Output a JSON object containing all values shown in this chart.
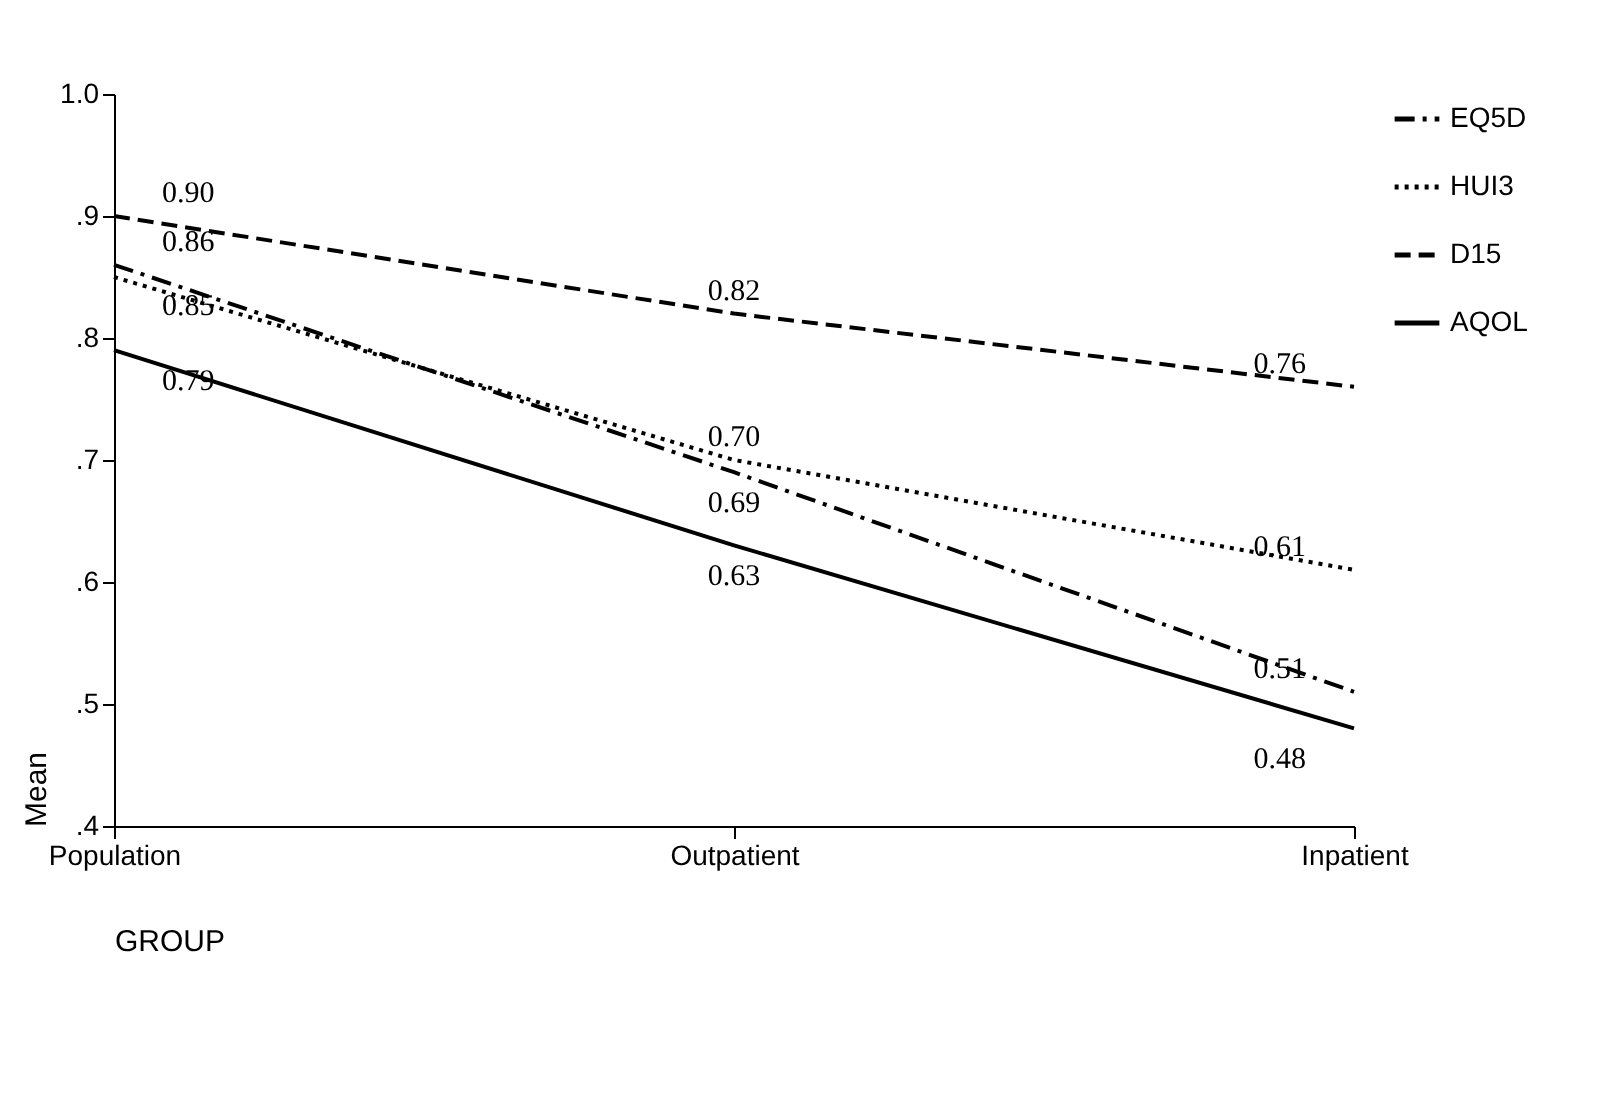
{
  "chart_data": {
    "type": "line",
    "categories": [
      "Population",
      "Outpatient",
      "Inpatient"
    ],
    "series": [
      {
        "name": "EQ5D",
        "color": "#000000",
        "line_style": "dashdot",
        "values": [
          0.86,
          0.69,
          0.51
        ],
        "value_labels": [
          "0.86",
          "0.69",
          "0.51"
        ]
      },
      {
        "name": "HUI3",
        "color": "#000000",
        "line_style": "dotted",
        "values": [
          0.85,
          0.7,
          0.61
        ],
        "value_labels": [
          "0.85",
          "0.70",
          "0.61"
        ]
      },
      {
        "name": "D15",
        "color": "#000000",
        "line_style": "dashed",
        "values": [
          0.9,
          0.82,
          0.76
        ],
        "value_labels": [
          "0.90",
          "0.82",
          "0.76"
        ]
      },
      {
        "name": "AQOL",
        "color": "#000000",
        "line_style": "solid",
        "values": [
          0.79,
          0.63,
          0.48
        ],
        "value_labels": [
          "0.79",
          "0.63",
          "0.48"
        ]
      }
    ],
    "xlabel": "GROUP",
    "ylabel": "Mean",
    "ylim": [
      0.4,
      1.0
    ],
    "yticks": [
      {
        "value": 0.4,
        "label": ".4"
      },
      {
        "value": 0.5,
        "label": ".5"
      },
      {
        "value": 0.6,
        "label": ".6"
      },
      {
        "value": 0.7,
        "label": ".7"
      },
      {
        "value": 0.8,
        "label": ".8"
      },
      {
        "value": 0.9,
        "label": ".9"
      },
      {
        "value": 1.0,
        "label": "1.0"
      }
    ],
    "legend": "right",
    "grid": false,
    "marker": "none"
  }
}
